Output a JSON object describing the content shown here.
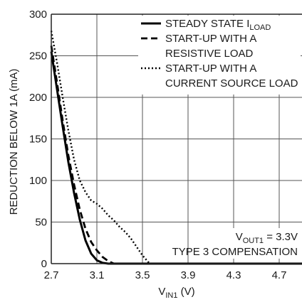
{
  "chart_data": {
    "type": "line",
    "title": "",
    "xlabel": {
      "main": "V",
      "sub": "IN1",
      "unit": " (V)"
    },
    "ylabel": "REDUCTION BELOW 1A (mA)",
    "xlim": [
      2.7,
      4.9
    ],
    "ylim": [
      0,
      300
    ],
    "xticks": [
      2.7,
      3.1,
      3.5,
      3.9,
      4.3,
      4.7
    ],
    "xtick_labels": [
      "2.7",
      "3.1",
      "3.5",
      "3.9",
      "4.3",
      "4.7"
    ],
    "yticks": [
      0,
      50,
      100,
      150,
      200,
      250,
      300
    ],
    "ytick_labels": [
      "0",
      "50",
      "100",
      "150",
      "200",
      "250",
      "300"
    ],
    "grid": true,
    "legend_position": "top-right",
    "series": [
      {
        "name_lines": [
          {
            "main": "STEADY STATE I",
            "sub": "LOAD"
          }
        ],
        "style": "solid",
        "x": [
          2.7,
          2.75,
          2.8,
          2.85,
          2.9,
          2.95,
          3.0,
          3.05,
          3.1,
          3.15,
          3.2,
          3.25,
          4.9
        ],
        "y": [
          255,
          210,
          165,
          122,
          85,
          53,
          28,
          12,
          4,
          1,
          0,
          0,
          0
        ]
      },
      {
        "name_lines": [
          {
            "main": "START-UP WITH A"
          },
          {
            "main": "RESISTIVE LOAD"
          }
        ],
        "style": "dashed",
        "x": [
          2.7,
          2.75,
          2.8,
          2.85,
          2.9,
          2.95,
          3.0,
          3.05,
          3.1,
          3.15,
          3.2,
          3.25,
          3.3,
          4.9
        ],
        "y": [
          262,
          218,
          172,
          130,
          95,
          65,
          42,
          26,
          16,
          8,
          3,
          0,
          0,
          0
        ]
      },
      {
        "name_lines": [
          {
            "main": "START-UP WITH A"
          },
          {
            "main": "CURRENT SOURCE LOAD"
          }
        ],
        "style": "dotted",
        "x": [
          2.7,
          2.75,
          2.8,
          2.85,
          2.9,
          2.95,
          3.0,
          3.05,
          3.1,
          3.15,
          3.2,
          3.25,
          3.3,
          3.35,
          3.4,
          3.45,
          3.5,
          3.55,
          3.58,
          4.9
        ],
        "y": [
          280,
          242,
          200,
          160,
          125,
          100,
          86,
          76,
          72,
          66,
          58,
          52,
          44,
          38,
          30,
          20,
          10,
          2,
          0,
          0
        ]
      }
    ],
    "annotations": [
      {
        "main": "V",
        "sub": "OUT1",
        "tail": " = 3.3V"
      },
      {
        "main": "TYPE 3 COMPENSATION"
      }
    ]
  }
}
